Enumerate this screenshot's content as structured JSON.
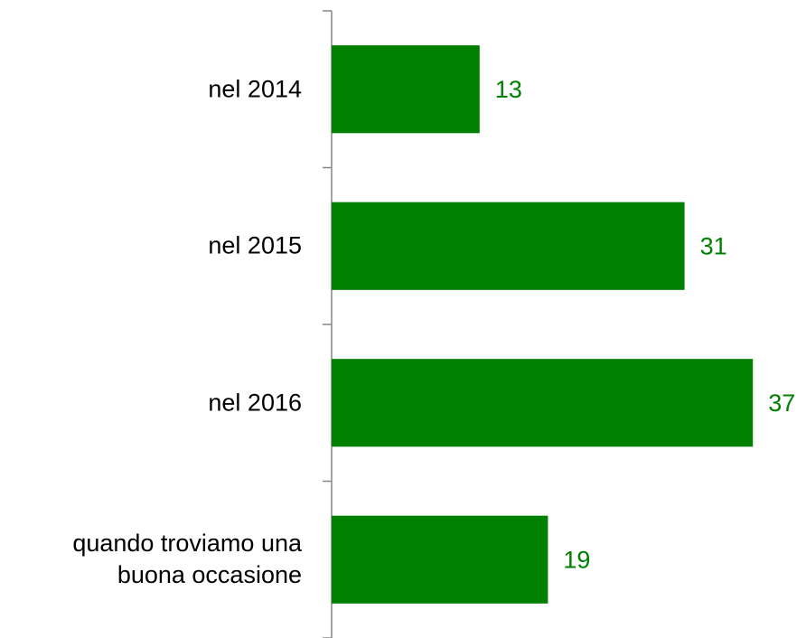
{
  "chart_data": {
    "type": "bar",
    "orientation": "horizontal",
    "categories": [
      "nel 2014",
      "nel 2015",
      "nel 2016",
      "quando troviamo una buona occasione"
    ],
    "values": [
      13,
      31,
      37,
      19
    ],
    "color": "#008000",
    "xlim": [
      0,
      40
    ]
  }
}
